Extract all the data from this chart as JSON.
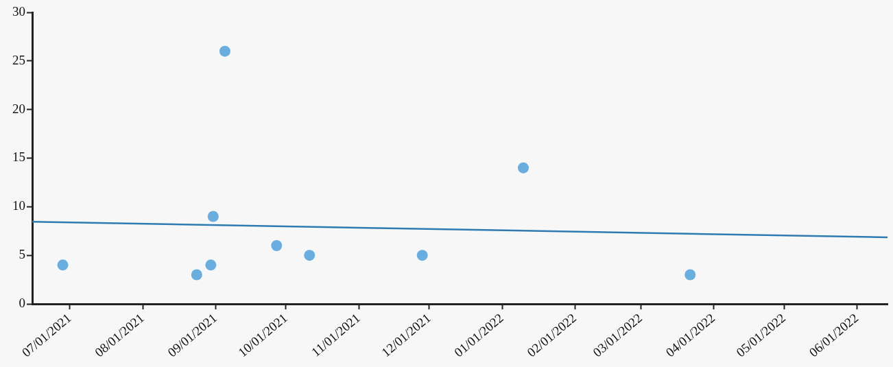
{
  "chart_data": {
    "type": "scatter",
    "xlim": [
      "2021-06-15",
      "2022-06-14"
    ],
    "ylim": [
      0,
      30
    ],
    "yticks": [
      0,
      5,
      10,
      15,
      20,
      25,
      30
    ],
    "xticks": [
      {
        "value": "2021-07-01",
        "label": "07/01/2021"
      },
      {
        "value": "2021-08-01",
        "label": "08/01/2021"
      },
      {
        "value": "2021-09-01",
        "label": "09/01/2021"
      },
      {
        "value": "2021-10-01",
        "label": "10/01/2021"
      },
      {
        "value": "2021-11-01",
        "label": "11/01/2021"
      },
      {
        "value": "2021-12-01",
        "label": "12/01/2021"
      },
      {
        "value": "2022-01-01",
        "label": "01/01/2022"
      },
      {
        "value": "2022-02-01",
        "label": "02/01/2022"
      },
      {
        "value": "2022-03-01",
        "label": "03/01/2022"
      },
      {
        "value": "2022-04-01",
        "label": "04/01/2022"
      },
      {
        "value": "2022-05-01",
        "label": "05/01/2022"
      },
      {
        "value": "2022-06-01",
        "label": "06/01/2022"
      }
    ],
    "grid": false,
    "legend": false,
    "series": [
      {
        "marker": "circle",
        "color": "#6aaee0",
        "x": [
          "2021-06-28",
          "2021-08-24",
          "2021-08-30",
          "2021-08-31",
          "2021-09-05",
          "2021-09-27",
          "2021-10-11",
          "2021-11-28",
          "2022-01-10",
          "2022-03-22"
        ],
        "values": [
          4,
          3,
          4,
          9,
          26,
          6,
          5,
          5,
          14,
          3
        ]
      },
      {
        "type": "line",
        "marker": "none",
        "color": "#2e7bb4",
        "x": [
          "2021-06-15",
          "2022-06-14"
        ],
        "values": [
          8.45,
          6.85
        ]
      }
    ]
  }
}
